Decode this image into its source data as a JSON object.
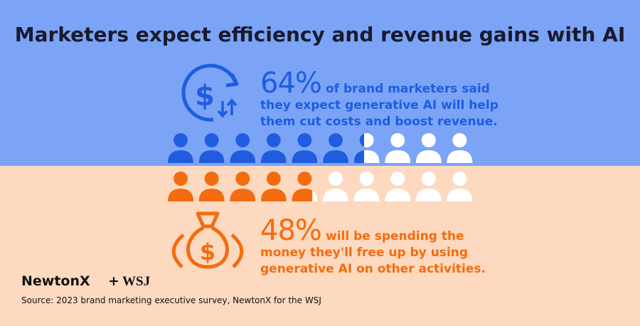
{
  "title": "Marketers expect efficiency and revenue gains with AI",
  "stats": [
    {
      "value": 64,
      "value_label": "64%",
      "lines": [
        "of brand marketers said",
        "they expect generative AI will help",
        "them cut costs and boost revenue."
      ],
      "color": "#1f5ce0"
    },
    {
      "value": 48,
      "value_label": "48%",
      "lines": [
        "will be spending the",
        "money they'll free up by using",
        "generative AI on other activities."
      ],
      "color": "#f36c0f"
    }
  ],
  "logos": {
    "left": "NewtonX",
    "plus": "+",
    "right": "WSJ"
  },
  "source": "Source: 2023 brand marketing executive survey, NewtonX for the WSJ"
}
